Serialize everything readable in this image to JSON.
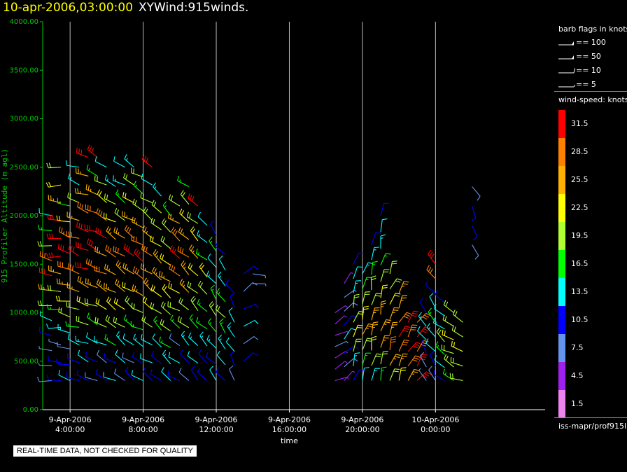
{
  "header": {
    "date": "10-apr-2006,03:00:00",
    "product": "XYWind:915winds."
  },
  "legend": {
    "flags_title": "barb flags in knots",
    "flags": [
      {
        "label": "== 100"
      },
      {
        "label": "== 50"
      },
      {
        "label": "== 10"
      },
      {
        "label": "== 5"
      }
    ],
    "speed_title": "wind-speed: knots",
    "speed_bins": [
      {
        "label": "31.5",
        "color": "#ff0000"
      },
      {
        "label": "28.5",
        "color": "#ff8000"
      },
      {
        "label": "25.5",
        "color": "#ffb000"
      },
      {
        "label": "22.5",
        "color": "#ffff00"
      },
      {
        "label": "19.5",
        "color": "#b0ff30"
      },
      {
        "label": "16.5",
        "color": "#00ff00"
      },
      {
        "label": "13.5",
        "color": "#00ffff"
      },
      {
        "label": "10.5",
        "color": "#0000ff"
      },
      {
        "label": "7.5",
        "color": "#6495ed"
      },
      {
        "label": "4.5",
        "color": "#a020f0"
      },
      {
        "label": "1.5",
        "color": "#ee82ee"
      }
    ],
    "source": "iss-mapr/prof915l"
  },
  "notice": "REAL-TIME DATA, NOT CHECKED FOR QUALITY",
  "chart_data": {
    "type": "wind-barb time-height",
    "title": "XYWind:915winds.",
    "ylabel": "915 Profiler Altitude (m agl)",
    "xlabel": "time",
    "ylim": [
      0,
      4000
    ],
    "yticks": [
      "0.00",
      "500.00",
      "1000.00",
      "1500.00",
      "2000.00",
      "2500.00",
      "3000.00",
      "3500.00",
      "4000.00"
    ],
    "xlim_hours": [
      2.5,
      30.0
    ],
    "xticks": [
      {
        "hour": 4,
        "line1": "9-Apr-2006",
        "line2": "4:00:00"
      },
      {
        "hour": 8,
        "line1": "9-Apr-2006",
        "line2": "8:00:00"
      },
      {
        "hour": 12,
        "line1": "9-Apr-2006",
        "line2": "12:00:00"
      },
      {
        "hour": 16,
        "line1": "9-Apr-2006",
        "line2": "16:00:00"
      },
      {
        "hour": 20,
        "line1": "9-Apr-2006",
        "line2": "20:00:00"
      },
      {
        "hour": 24,
        "line1": "10-Apr-2006",
        "line2": "0:00:00"
      }
    ],
    "grid": "vertical lines at ticks",
    "profiles_note": "approximate wind speed (knots) per profile and height band",
    "profiles": [
      {
        "hour": 3.0,
        "hmin": 300,
        "hmax": 2000,
        "speed": [
          8,
          6,
          7,
          10,
          12,
          18,
          26,
          31,
          28,
          20,
          16,
          12
        ],
        "dir": 280
      },
      {
        "hour": 3.5,
        "hmin": 300,
        "hmax": 2500,
        "speed": [
          10,
          9,
          6,
          12,
          15,
          20,
          25,
          30,
          31,
          30,
          24,
          22,
          18
        ],
        "dir": 275
      },
      {
        "hour": 4.0,
        "hmin": 300,
        "hmax": 2100,
        "speed": [
          12,
          10,
          8,
          14,
          18,
          22,
          24,
          28,
          30,
          27,
          22,
          16
        ],
        "dir": 285
      },
      {
        "hour": 4.5,
        "hmin": 300,
        "hmax": 2500,
        "speed": [
          9,
          11,
          12,
          16,
          20,
          24,
          29,
          31,
          29,
          26,
          20,
          14,
          12
        ],
        "dir": 290
      },
      {
        "hour": 5.0,
        "hmin": 300,
        "hmax": 2600,
        "speed": [
          10,
          12,
          14,
          18,
          22,
          26,
          30,
          31,
          30,
          28,
          26,
          24,
          30
        ],
        "dir": 290
      },
      {
        "hour": 5.5,
        "hmin": 300,
        "hmax": 2600,
        "speed": [
          8,
          10,
          12,
          16,
          20,
          24,
          28,
          30,
          31,
          28,
          26,
          16,
          31
        ],
        "dir": 295
      },
      {
        "hour": 6.0,
        "hmin": 300,
        "hmax": 2500,
        "speed": [
          10,
          8,
          14,
          18,
          22,
          26,
          28,
          24,
          30,
          28,
          22,
          18,
          12
        ],
        "dir": 300
      },
      {
        "hour": 6.5,
        "hmin": 300,
        "hmax": 2300,
        "speed": [
          12,
          10,
          16,
          20,
          22,
          24,
          26,
          28,
          26,
          22,
          18,
          14
        ],
        "dir": 300
      },
      {
        "hour": 7.0,
        "hmin": 300,
        "hmax": 2500,
        "speed": [
          8,
          12,
          14,
          18,
          22,
          24,
          26,
          28,
          24,
          20,
          16,
          14,
          12
        ],
        "dir": 305
      },
      {
        "hour": 7.5,
        "hmin": 300,
        "hmax": 2500,
        "speed": [
          10,
          8,
          12,
          16,
          18,
          22,
          26,
          30,
          28,
          24,
          22,
          18,
          14
        ],
        "dir": 305
      },
      {
        "hour": 8.0,
        "hmin": 300,
        "hmax": 2400,
        "speed": [
          12,
          10,
          14,
          16,
          20,
          24,
          28,
          31,
          28,
          24,
          20,
          16,
          19
        ],
        "dir": 300
      },
      {
        "hour": 8.5,
        "hmin": 300,
        "hmax": 2500,
        "speed": [
          9,
          12,
          14,
          18,
          22,
          24,
          26,
          28,
          26,
          20,
          18,
          12,
          31
        ],
        "dir": 305
      },
      {
        "hour": 9.0,
        "hmin": 300,
        "hmax": 2200,
        "speed": [
          10,
          10,
          12,
          16,
          18,
          22,
          24,
          26,
          22,
          20,
          18,
          14
        ],
        "dir": 310
      },
      {
        "hour": 9.5,
        "hmin": 300,
        "hmax": 2000,
        "speed": [
          12,
          14,
          16,
          18,
          20,
          22,
          24,
          22,
          20,
          18,
          16
        ],
        "dir": 310
      },
      {
        "hour": 10.0,
        "hmin": 300,
        "hmax": 2100,
        "speed": [
          10,
          12,
          8,
          16,
          18,
          22,
          28,
          30,
          28,
          24,
          20
        ],
        "dir": 305
      },
      {
        "hour": 10.5,
        "hmin": 300,
        "hmax": 2300,
        "speed": [
          8,
          10,
          14,
          18,
          20,
          24,
          26,
          28,
          26,
          22,
          20,
          16
        ],
        "dir": 310
      },
      {
        "hour": 11.0,
        "hmin": 300,
        "hmax": 2100,
        "speed": [
          10,
          12,
          14,
          16,
          18,
          20,
          22,
          24,
          22,
          20,
          31
        ],
        "dir": 315
      },
      {
        "hour": 11.5,
        "hmin": 300,
        "hmax": 1900,
        "speed": [
          9,
          11,
          13,
          15,
          17,
          19,
          21,
          16,
          14,
          12
        ],
        "dir": 315
      },
      {
        "hour": 12.0,
        "hmin": 300,
        "hmax": 1800,
        "speed": [
          12,
          10,
          14,
          16,
          18,
          16,
          14,
          12,
          16,
          10
        ],
        "dir": 320
      },
      {
        "hour": 12.5,
        "hmin": 300,
        "hmax": 1600,
        "speed": [
          10,
          12,
          14,
          16,
          18,
          16,
          14,
          12,
          10
        ],
        "dir": 320
      },
      {
        "hour": 13.0,
        "hmin": 300,
        "hmax": 1200,
        "speed": [
          8,
          10,
          12,
          14,
          12,
          10,
          9
        ],
        "dir": 330
      },
      {
        "hour": 13.5,
        "hmin": 500,
        "hmax": 1400,
        "speed": [
          10,
          8,
          12,
          10,
          8,
          9
        ],
        "dir": 60
      },
      {
        "hour": 14.0,
        "hmin": 1300,
        "hmax": 1400,
        "speed": [
          7,
          7
        ],
        "dir": 90
      },
      {
        "hour": 18.5,
        "hmin": 300,
        "hmax": 1000,
        "speed": [
          4,
          5,
          4,
          6,
          5,
          4,
          3
        ],
        "dir": 60
      },
      {
        "hour": 19.0,
        "hmin": 300,
        "hmax": 1300,
        "speed": [
          5,
          8,
          10,
          12,
          10,
          8,
          6,
          4
        ],
        "dir": 45
      },
      {
        "hour": 19.5,
        "hmin": 300,
        "hmax": 1500,
        "speed": [
          10,
          14,
          18,
          22,
          20,
          18,
          14,
          12,
          10
        ],
        "dir": 20
      },
      {
        "hour": 20.0,
        "hmin": 300,
        "hmax": 1400,
        "speed": [
          12,
          16,
          20,
          24,
          22,
          20,
          16,
          14
        ],
        "dir": 15
      },
      {
        "hour": 20.5,
        "hmin": 300,
        "hmax": 1700,
        "speed": [
          14,
          18,
          22,
          26,
          24,
          20,
          18,
          16,
          14,
          10
        ],
        "dir": 10
      },
      {
        "hour": 21.0,
        "hmin": 300,
        "hmax": 2000,
        "speed": [
          16,
          20,
          24,
          26,
          24,
          22,
          18,
          16,
          14,
          12,
          10
        ],
        "dir": 15
      },
      {
        "hour": 21.5,
        "hmin": 300,
        "hmax": 1400,
        "speed": [
          20,
          24,
          28,
          26,
          24,
          22,
          20,
          18
        ],
        "dir": 20
      },
      {
        "hour": 22.0,
        "hmin": 300,
        "hmax": 1200,
        "speed": [
          22,
          26,
          28,
          30,
          28,
          26,
          24
        ],
        "dir": 25
      },
      {
        "hour": 22.5,
        "hmin": 300,
        "hmax": 900,
        "speed": [
          26,
          28,
          30,
          28,
          30
        ],
        "dir": 30
      },
      {
        "hour": 23.0,
        "hmin": 300,
        "hmax": 900,
        "speed": [
          30,
          31,
          28,
          30,
          29
        ],
        "dir": 35
      },
      {
        "hour": 23.5,
        "hmin": 300,
        "hmax": 1000,
        "speed": [
          6,
          8,
          10,
          12,
          14,
          10
        ],
        "dir": 330
      },
      {
        "hour": 24.0,
        "hmin": 300,
        "hmax": 1500,
        "speed": [
          8,
          10,
          12,
          14,
          16,
          12,
          10,
          28,
          31
        ],
        "dir": 320
      },
      {
        "hour": 24.5,
        "hmin": 300,
        "hmax": 1100,
        "speed": [
          10,
          12,
          16,
          18,
          14,
          12,
          10
        ],
        "dir": 310
      },
      {
        "hour": 25.0,
        "hmin": 300,
        "hmax": 1000,
        "speed": [
          16,
          18,
          20,
          22,
          20,
          18
        ],
        "dir": 300
      },
      {
        "hour": 25.5,
        "hmin": 300,
        "hmax": 900,
        "speed": [
          18,
          20,
          22,
          20,
          18
        ],
        "dir": 295
      },
      {
        "hour": 26.0,
        "hmin": 1700,
        "hmax": 2300,
        "speed": [
          8,
          10,
          9,
          8
        ],
        "dir": 150
      }
    ]
  }
}
